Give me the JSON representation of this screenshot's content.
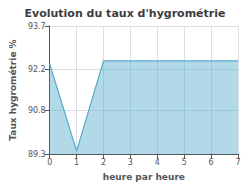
{
  "chart_data": {
    "type": "area",
    "title": "Evolution du taux d'hygrométrie",
    "xlabel": "heure par heure",
    "ylabel": "Taux hygrométrie %",
    "x": [
      0,
      1,
      2,
      3,
      4,
      5,
      6,
      7
    ],
    "values": [
      92.4,
      89.4,
      92.5,
      92.5,
      92.5,
      92.5,
      92.5,
      92.5
    ],
    "color": "#55aacc",
    "xlim": [
      0,
      7
    ],
    "ylim": [
      89.3,
      93.7
    ],
    "xticks": [
      0,
      1,
      2,
      3,
      4,
      5,
      6,
      7
    ],
    "yticks": [
      89.3,
      90.8,
      92.2,
      93.7
    ],
    "grid": true
  }
}
